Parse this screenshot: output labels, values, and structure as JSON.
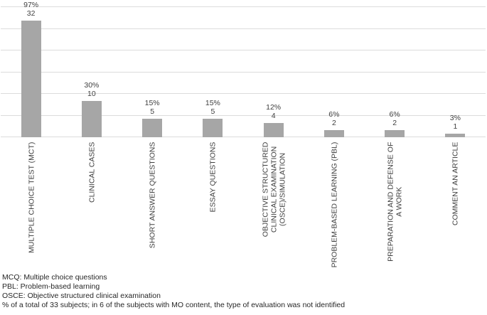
{
  "chart_data": {
    "type": "bar",
    "title": "",
    "xlabel": "",
    "ylabel": "",
    "y_axis_tick_labels_visible": false,
    "ylim": [
      0,
      36
    ],
    "gridlines": "horizontal",
    "legend": "none",
    "bar_color": "#a6a6a6",
    "gridline_color": "#dcdcdc",
    "label_color": "#3f3f3f",
    "categories": [
      "MULTIPLE CHOICE TEST (MCT)",
      "CLINICAL CASES",
      "SHORT ANSWER QUESTIONS",
      "ESSAY QUESTIONS",
      "OBJECTIVE STRUCTURED CLINICAL EXAMINATION (OSCE)/SIMULATION",
      "PROBLEM-BASED LEARNING (PBL)",
      "PREPARATION AND DEFENSE OF A WORK",
      "COMMENT AN ARTICLE"
    ],
    "category_display_lines": [
      [
        "MULTIPLE CHOICE TEST (MCT)"
      ],
      [
        "CLINICAL CASES"
      ],
      [
        "SHORT ANSWER QUESTIONS"
      ],
      [
        "ESSAY QUESTIONS"
      ],
      [
        "OBJECTIVE STRUCTURED",
        "CLINICAL EXAMINATION",
        "(OSCE)/SIMULATION"
      ],
      [
        "PROBLEM-BASED LEARNING (PBL)"
      ],
      [
        "PREPARATION AND DEFENSE OF",
        "A WORK"
      ],
      [
        "COMMENT AN ARTICLE"
      ]
    ],
    "values": [
      32,
      10,
      5,
      5,
      4,
      2,
      2,
      1
    ],
    "percent_labels": [
      "97%",
      "30%",
      "15%",
      "15%",
      "12%",
      "6%",
      "6%",
      "3%"
    ],
    "count_labels": [
      "32",
      "10",
      "5",
      "5",
      "4",
      "2",
      "2",
      "1"
    ]
  },
  "footnotes": [
    "MCQ: Multiple choice questions",
    "PBL: Problem-based learning",
    "OSCE: Objective structured clinical examination",
    "% of a total of 33 subjects; in 6 of the subjects with MO content, the type of evaluation was not identified"
  ]
}
